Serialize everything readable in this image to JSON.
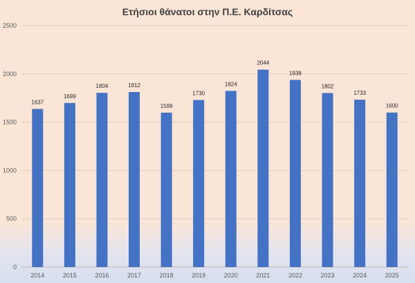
{
  "chart_data": {
    "type": "bar",
    "title": "Ετήσιοι θάνατοι στην Π.Ε. Καρδίτσας",
    "xlabel": "",
    "ylabel": "",
    "categories": [
      "2014",
      "2015",
      "2016",
      "2017",
      "2018",
      "2019",
      "2020",
      "2021",
      "2022",
      "2023",
      "2024",
      "2025"
    ],
    "values": [
      1637,
      1699,
      1804,
      1812,
      1599,
      1730,
      1824,
      2044,
      1938,
      1802,
      1733,
      1600
    ],
    "ylim": [
      0,
      2500
    ],
    "yticks": [
      0,
      500,
      1000,
      1500,
      2000,
      2500
    ],
    "grid": true,
    "data_labels": true,
    "legend": "none",
    "colors": {
      "bar": "#4472c4",
      "background_top": "#fbe5d6",
      "background_bottom": "#d6dff0"
    }
  }
}
